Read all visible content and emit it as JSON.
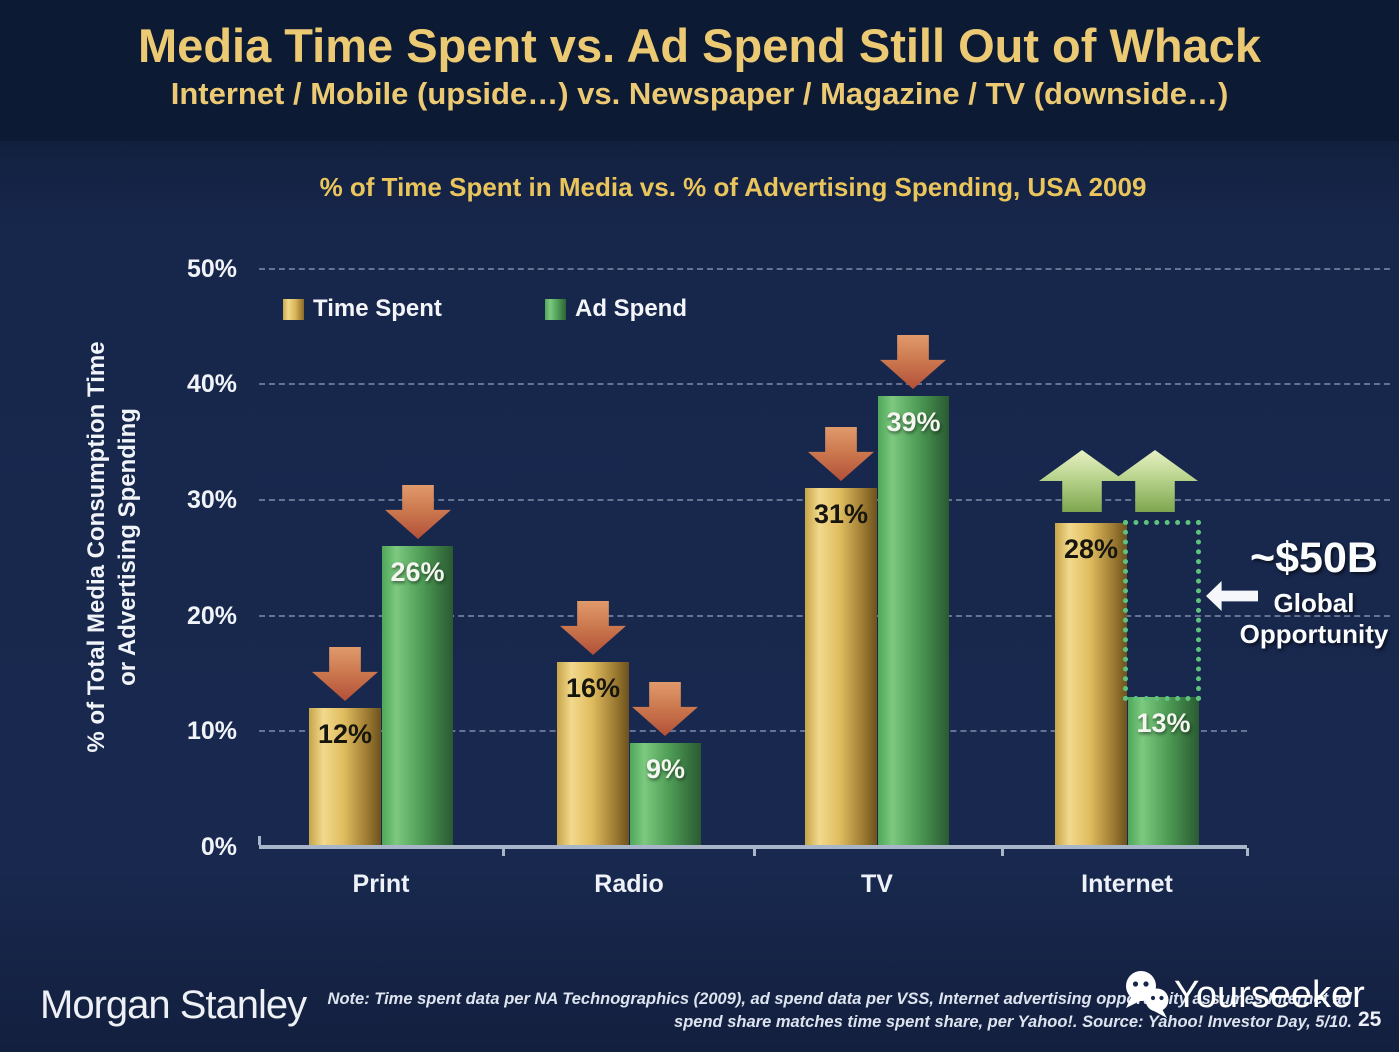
{
  "header": {
    "title": "Media Time Spent vs. Ad Spend Still Out of Whack",
    "subtitle": "Internet / Mobile (upside…) vs. Newspaper / Magazine / TV (downside…)"
  },
  "chart_data": {
    "type": "bar",
    "title": "% of Time Spent in Media vs. % of Advertising Spending, USA 2009",
    "ylabel_line1": "% of Total Media Consumption Time",
    "ylabel_line2": "or Advertising Spending",
    "categories": [
      "Print",
      "Radio",
      "TV",
      "Internet"
    ],
    "series": [
      {
        "name": "Time Spent",
        "color": "#d9b356",
        "values": [
          12,
          16,
          31,
          28
        ],
        "labels": [
          "12%",
          "16%",
          "31%",
          "28%"
        ]
      },
      {
        "name": "Ad Spend",
        "color": "#4f9e57",
        "values": [
          26,
          9,
          39,
          13
        ],
        "labels": [
          "26%",
          "9%",
          "39%",
          "13%"
        ]
      }
    ],
    "yticks": [
      "0%",
      "10%",
      "20%",
      "30%",
      "40%",
      "50%"
    ],
    "ylim": [
      0,
      50
    ],
    "grid": "dashed-horizontal",
    "legend_position": "top-left-inside",
    "bar_arrows": {
      "Print": [
        "down",
        "down"
      ],
      "Radio": [
        "down",
        "down"
      ],
      "TV": [
        "down",
        "down"
      ],
      "Internet": [
        "up",
        "up"
      ]
    }
  },
  "annotation": {
    "value": "~$50B",
    "line1": "Global",
    "line2": "Opportunity"
  },
  "footer": {
    "logo": "Morgan Stanley",
    "note_line1": "Note: Time spent data per NA Technographics (2009), ad spend data per VSS, Internet advertising opportunity assumes Internet ad",
    "note_line2": "spend share matches time spent share, per Yahoo!. Source: Yahoo! Investor Day, 5/10.",
    "watermark": "Yourseeker",
    "page_number": "25"
  },
  "colors": {
    "header_background": "#0c1a33",
    "body_background": "#17274c",
    "title_gold": "#ecc973",
    "chart_title_gold": "#e9c55c",
    "bar_gold": "#d9b356",
    "bar_green": "#4f9e57",
    "down_arrow": "#c86a46",
    "up_arrow": "#aecb80",
    "opportunity_dotted_green": "#5ec47d",
    "text_white": "#f0f3f8"
  }
}
